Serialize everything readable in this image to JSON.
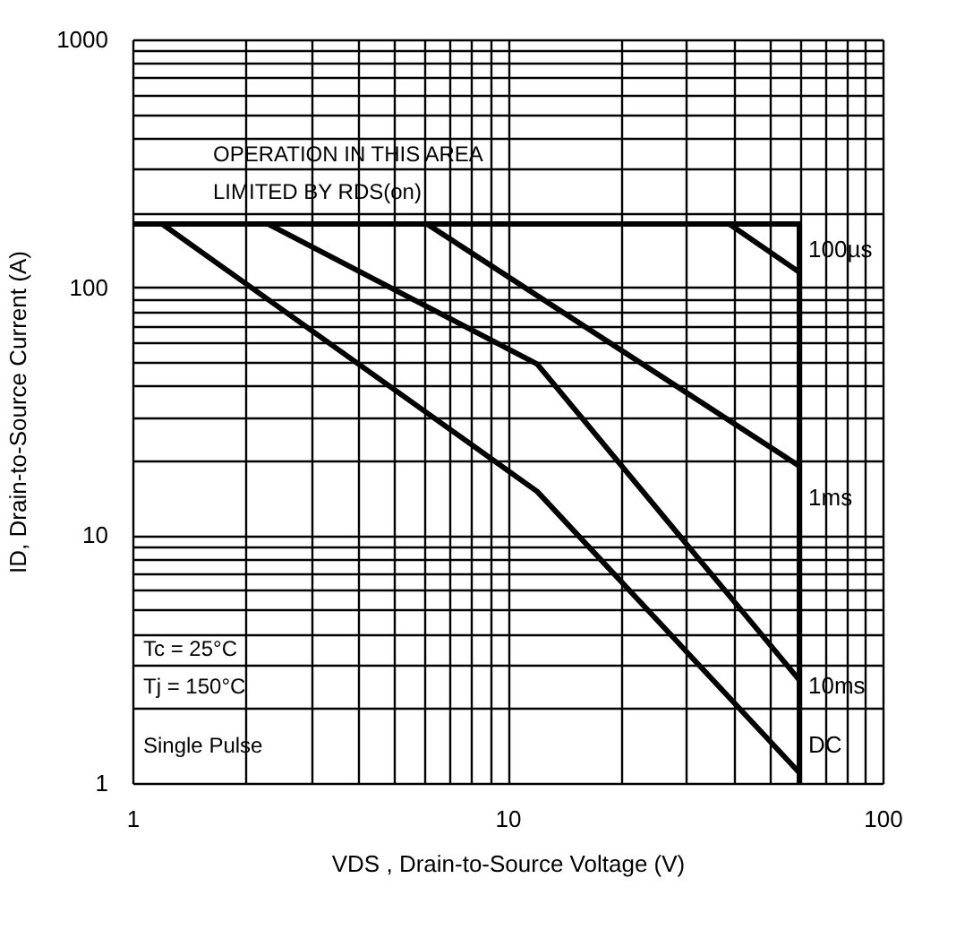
{
  "chart_data": {
    "type": "line",
    "xlabel": "VDS , Drain-to-Source Voltage (V)",
    "ylabel": "ID, Drain-to-Source Current (A)",
    "log": "xy",
    "grid": true,
    "legend": false,
    "line_style": "solid",
    "marker": "none",
    "xlim": [
      1,
      100
    ],
    "ylim": [
      1,
      1000
    ],
    "xticks": [
      1,
      {
        "value": 2,
        "label": null
      },
      {
        "value": 3,
        "label": null
      },
      {
        "value": 4,
        "label": null
      },
      {
        "value": 5,
        "label": null
      },
      {
        "value": 6,
        "label": null
      },
      {
        "value": 7,
        "label": null
      },
      {
        "value": 8,
        "label": null
      },
      {
        "value": 9,
        "label": null
      },
      10,
      {
        "value": 20,
        "label": null
      },
      {
        "value": 30,
        "label": null
      },
      {
        "value": 40,
        "label": null
      },
      {
        "value": 50,
        "label": null
      },
      {
        "value": 60,
        "label": null
      },
      {
        "value": 70,
        "label": null
      },
      {
        "value": 80,
        "label": null
      },
      {
        "value": 90,
        "label": null
      },
      100
    ],
    "yticks": [
      1,
      {
        "value": 2,
        "label": null
      },
      {
        "value": 3,
        "label": null
      },
      {
        "value": 4,
        "label": null
      },
      {
        "value": 5,
        "label": null
      },
      {
        "value": 6,
        "label": null
      },
      {
        "value": 7,
        "label": null
      },
      {
        "value": 8,
        "label": null
      },
      {
        "value": 9,
        "label": null
      },
      10,
      {
        "value": 20,
        "label": null
      },
      {
        "value": 30,
        "label": null
      },
      {
        "value": 40,
        "label": null
      },
      {
        "value": 50,
        "label": null
      },
      {
        "value": 60,
        "label": null
      },
      {
        "value": 70,
        "label": null
      },
      {
        "value": 80,
        "label": null
      },
      {
        "value": 90,
        "label": null
      },
      100,
      {
        "value": 200,
        "label": null
      },
      {
        "value": 300,
        "label": null
      },
      {
        "value": 400,
        "label": null
      },
      {
        "value": 500,
        "label": null
      },
      {
        "value": 600,
        "label": null
      },
      {
        "value": 700,
        "label": null
      },
      {
        "value": 800,
        "label": null
      },
      {
        "value": 900,
        "label": null
      },
      1000
    ],
    "series": [
      {
        "color": "#000000",
        "x": [
          1,
          60,
          60
        ],
        "values": [
          180,
          180,
          1
        ]
      },
      {
        "name": "100µs",
        "color": "#000000",
        "x": [
          39,
          60
        ],
        "values": [
          180,
          115
        ]
      },
      {
        "name": "1ms",
        "color": "#000000",
        "x": [
          6.1,
          60
        ],
        "values": [
          180,
          19
        ]
      },
      {
        "name": "10ms",
        "color": "#000000",
        "x": [
          2.3,
          12,
          60
        ],
        "values": [
          180,
          49,
          2.6
        ]
      },
      {
        "name": "DC",
        "color": "#000000",
        "x": [
          1.2,
          12,
          60
        ],
        "values": [
          180,
          15,
          1.1
        ]
      }
    ],
    "annotations": [
      "OPERATION IN THIS AREA",
      "LIMITED BY RDS(on)",
      "Tc = 25°C",
      "Tj = 150°C",
      "Single Pulse"
    ]
  }
}
